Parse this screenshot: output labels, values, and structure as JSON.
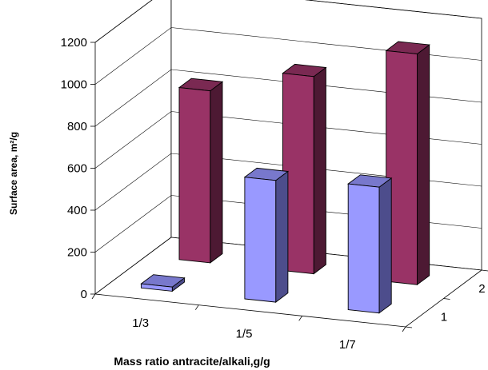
{
  "chart_data": {
    "type": "bar",
    "subtype": "3d-column",
    "categories": [
      "1/3",
      "1/5",
      "1/7"
    ],
    "series": [
      {
        "depth_label": "1",
        "values": [
          20,
          580,
          600
        ],
        "color": "#9999ff",
        "side_color": "#4d4d8c",
        "top_color": "#7878cc"
      },
      {
        "depth_label": "2",
        "values": [
          820,
          940,
          1100
        ],
        "color": "#993366",
        "side_color": "#4d1933",
        "top_color": "#7a2952"
      }
    ],
    "depth_labels": [
      "1",
      "2"
    ],
    "y_ticks": [
      "0",
      "200",
      "400",
      "600",
      "800",
      "1000",
      "1200"
    ],
    "ylim": [
      0,
      1200
    ],
    "xlabel": "Mass ratio antracite/alkali,g/g",
    "ylabel": "Surface area, m²/g",
    "grid": true,
    "legend": "none"
  }
}
